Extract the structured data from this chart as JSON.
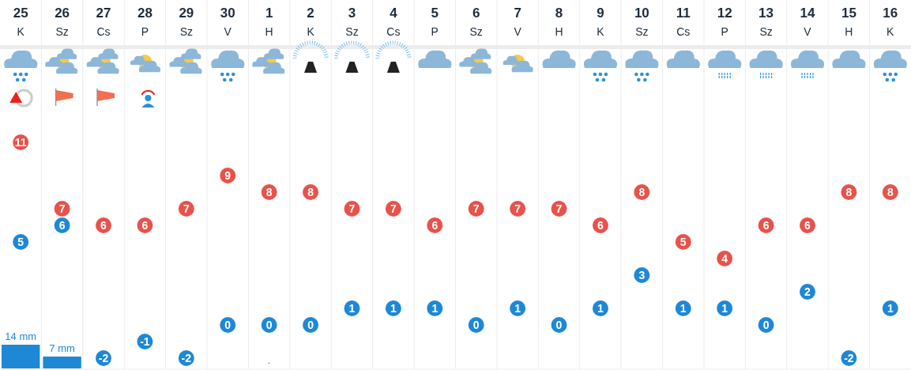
{
  "chart_data": {
    "type": "scatter",
    "categories": [
      "25\nK",
      "26\nSz",
      "27\nCs",
      "28\nP",
      "29\nSz",
      "30\nV",
      "1\nH",
      "2\nK",
      "3\nSz",
      "4\nCs",
      "5\nP",
      "6\nSz",
      "7\nV",
      "8\nH",
      "9\nK",
      "10\nSz",
      "11\nCs",
      "12\nP",
      "13\nSz",
      "14\nV",
      "15\nH",
      "16\nK"
    ],
    "series": [
      {
        "color": "#e8524a",
        "values": [
          11,
          7,
          6,
          6,
          7,
          9,
          8,
          8,
          7,
          7,
          6,
          7,
          7,
          7,
          6,
          8,
          5,
          4,
          6,
          6,
          8,
          8
        ]
      },
      {
        "color": "#1e88d6",
        "values": [
          5,
          6,
          -2,
          -1,
          -2,
          0,
          0,
          0,
          1,
          1,
          1,
          0,
          1,
          0,
          1,
          3,
          1,
          1,
          0,
          2,
          -2,
          1
        ]
      },
      {
        "type": "bar",
        "axis": "y2",
        "color": "#1e88d6",
        "values": [
          14,
          7,
          null,
          null,
          null,
          null,
          null,
          null,
          null,
          null,
          null,
          null,
          null,
          null,
          null,
          null,
          null,
          null,
          null,
          null,
          null,
          null
        ],
        "value_labels": [
          "14 mm",
          "7 mm",
          null,
          null,
          null,
          null,
          ".",
          null,
          null,
          null,
          null,
          null,
          null,
          null,
          null,
          null,
          null,
          null,
          null,
          null,
          null,
          null
        ]
      }
    ],
    "tick_labels": "x",
    "data_labels": true,
    "marker": "circle",
    "grid": "x"
  }
}
